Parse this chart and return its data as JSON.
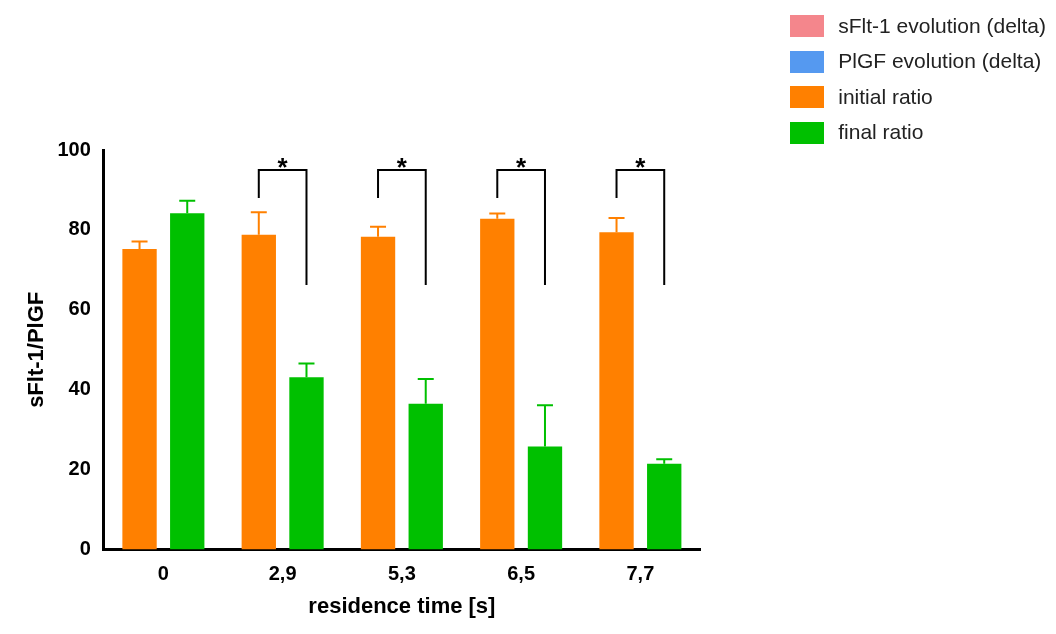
{
  "chart_data": {
    "type": "bar",
    "xlabel": "residence time [s]",
    "ylabel": "sFlt-1/PlGF",
    "categories": [
      "0",
      "2,9",
      "5,3",
      "6,5",
      "7,7"
    ],
    "series": [
      {
        "name": "sFlt-1 evolution (delta)",
        "color": "#f4868c",
        "values": [
          null,
          null,
          null,
          null,
          null
        ]
      },
      {
        "name": "PlGF evolution (delta)",
        "color": "#5599f0",
        "values": [
          null,
          null,
          null,
          null,
          null
        ]
      },
      {
        "name": "initial ratio",
        "color": "#ff8000",
        "values": [
          75.2,
          78.8,
          78.3,
          82.8,
          79.4
        ],
        "errors": [
          [
            75.2,
            77.1
          ],
          [
            78.8,
            84.4
          ],
          [
            78.3,
            80.8
          ],
          [
            82.8,
            84.1
          ],
          [
            79.4,
            83.0
          ]
        ]
      },
      {
        "name": "final ratio",
        "color": "#00c000",
        "values": [
          84.2,
          43.1,
          36.5,
          25.8,
          21.5
        ],
        "errors": [
          [
            84.2,
            87.3
          ],
          [
            43.1,
            46.6
          ],
          [
            36.5,
            42.7
          ],
          [
            25.8,
            36.1
          ],
          [
            21.5,
            22.6
          ]
        ]
      }
    ],
    "ylim": [
      0,
      100
    ],
    "yticks": [
      0,
      20,
      40,
      60,
      80,
      100
    ],
    "grid": false,
    "legend": "top right",
    "annotations": [
      "*",
      "*",
      "*",
      "*"
    ]
  }
}
